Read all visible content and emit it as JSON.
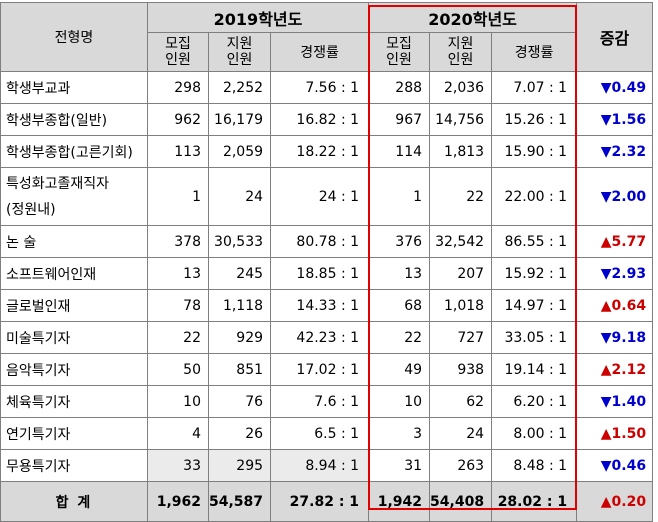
{
  "header": {
    "type_col": "전형명",
    "year2019": "2019학년도",
    "year2020": "2020학년도",
    "change_col": "증감",
    "recruit": "모집\n인원",
    "apply": "지원\n인원",
    "ratio": "경쟁률"
  },
  "rows": [
    {
      "name": "학생부교과",
      "r19": "298",
      "a19": "2,252",
      "c19": "7.56 : 1",
      "r20": "288",
      "a20": "2,036",
      "c20": "7.07 : 1",
      "dir": "▼",
      "chg": "0.49"
    },
    {
      "name": "학생부종합(일반)",
      "r19": "962",
      "a19": "16,179",
      "c19": "16.82 : 1",
      "r20": "967",
      "a20": "14,756",
      "c20": "15.26 : 1",
      "dir": "▼",
      "chg": "1.56"
    },
    {
      "name": "학생부종합(고른기회)",
      "r19": "113",
      "a19": "2,059",
      "c19": "18.22 : 1",
      "r20": "114",
      "a20": "1,813",
      "c20": "15.90 : 1",
      "dir": "▼",
      "chg": "2.32"
    },
    {
      "name": "특성화고졸재직자\n(정원내)",
      "r19": "1",
      "a19": "24",
      "c19": "24 : 1",
      "r20": "1",
      "a20": "22",
      "c20": "22.00 : 1",
      "dir": "▼",
      "chg": "2.00"
    },
    {
      "name": "논 술",
      "r19": "378",
      "a19": "30,533",
      "c19": "80.78 : 1",
      "r20": "376",
      "a20": "32,542",
      "c20": "86.55 : 1",
      "dir": "▲",
      "chg": "5.77"
    },
    {
      "name": "소프트웨어인재",
      "r19": "13",
      "a19": "245",
      "c19": "18.85 : 1",
      "r20": "13",
      "a20": "207",
      "c20": "15.92 : 1",
      "dir": "▼",
      "chg": "2.93"
    },
    {
      "name": "글로벌인재",
      "r19": "78",
      "a19": "1,118",
      "c19": "14.33 : 1",
      "r20": "68",
      "a20": "1,018",
      "c20": "14.97 : 1",
      "dir": "▲",
      "chg": "0.64"
    },
    {
      "name": "미술특기자",
      "r19": "22",
      "a19": "929",
      "c19": "42.23 : 1",
      "r20": "22",
      "a20": "727",
      "c20": "33.05 : 1",
      "dir": "▼",
      "chg": "9.18"
    },
    {
      "name": "음악특기자",
      "r19": "50",
      "a19": "851",
      "c19": "17.02 : 1",
      "r20": "49",
      "a20": "938",
      "c20": "19.14 : 1",
      "dir": "▲",
      "chg": "2.12"
    },
    {
      "name": "체육특기자",
      "r19": "10",
      "a19": "76",
      "c19": "7.6 : 1",
      "r20": "10",
      "a20": "62",
      "c20": "6.20 : 1",
      "dir": "▼",
      "chg": "1.40"
    },
    {
      "name": "연기특기자",
      "r19": "4",
      "a19": "26",
      "c19": "6.5 : 1",
      "r20": "3",
      "a20": "24",
      "c20": "8.00 : 1",
      "dir": "▲",
      "chg": "1.50"
    },
    {
      "name": "무용특기자",
      "r19": "33",
      "a19": "295",
      "c19": "8.94 : 1",
      "r20": "31",
      "a20": "263",
      "c20": "8.48 : 1",
      "dir": "▼",
      "chg": "0.46"
    }
  ],
  "total": {
    "name": "합 계",
    "r19": "1,962",
    "a19": "54,587",
    "c19": "27.82 : 1",
    "r20": "1,942",
    "a20": "54,408",
    "c20": "28.02 : 1",
    "dir": "▲",
    "chg": "0.20"
  },
  "colors": {
    "down": "#0000cc",
    "up": "#cc0000",
    "highlight": "#e00000",
    "header_bg": "#d9d9d9"
  }
}
